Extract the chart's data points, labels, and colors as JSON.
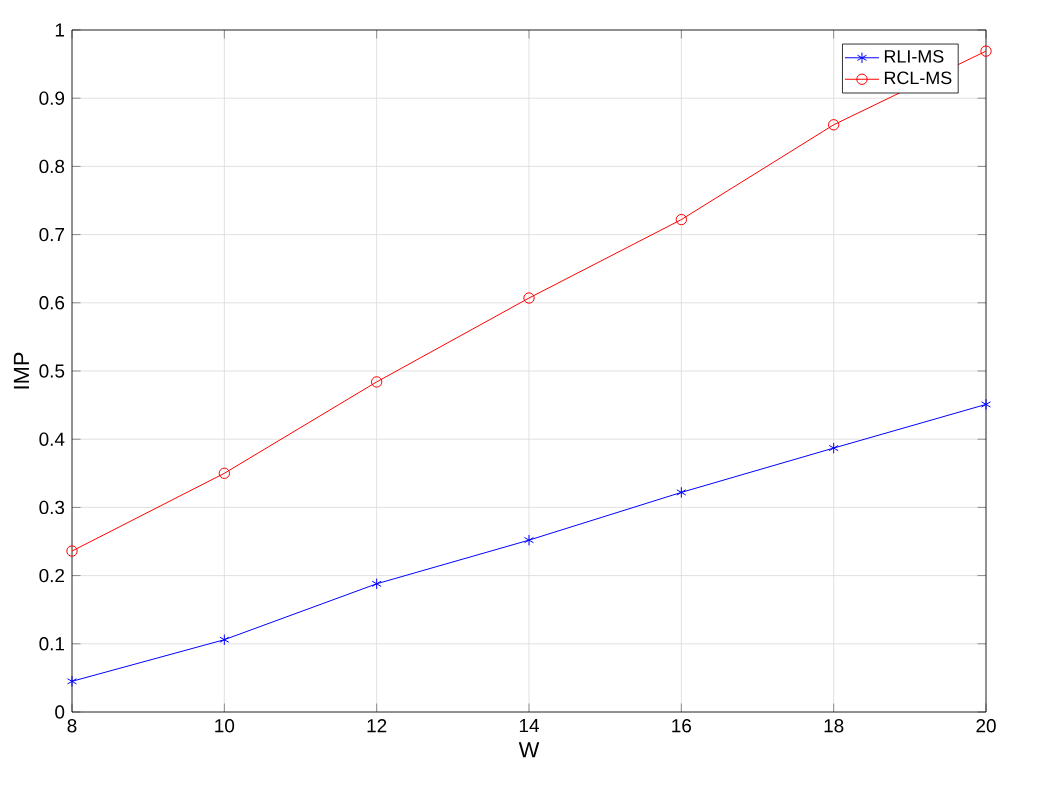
{
  "chart_data": {
    "type": "line",
    "xlabel": "W",
    "ylabel": "IMP",
    "x": [
      8,
      10,
      12,
      14,
      16,
      18,
      20
    ],
    "series": [
      {
        "name": "RLI-MS",
        "color": "#0000ff",
        "marker": "cross",
        "values": [
          0.045,
          0.106,
          0.188,
          0.252,
          0.322,
          0.387,
          0.451
        ]
      },
      {
        "name": "RCL-MS",
        "color": "#ff0000",
        "marker": "circle",
        "values": [
          0.236,
          0.35,
          0.484,
          0.607,
          0.722,
          0.861,
          0.969
        ]
      }
    ],
    "xlim": [
      8,
      20
    ],
    "ylim": [
      0,
      1
    ],
    "xticks": [
      8,
      10,
      12,
      14,
      16,
      18,
      20
    ],
    "yticks": [
      0,
      0.1,
      0.2,
      0.3,
      0.4,
      0.5,
      0.6,
      0.7,
      0.8,
      0.9,
      1
    ],
    "grid": true,
    "legend": "top right",
    "line_style": "solid"
  }
}
